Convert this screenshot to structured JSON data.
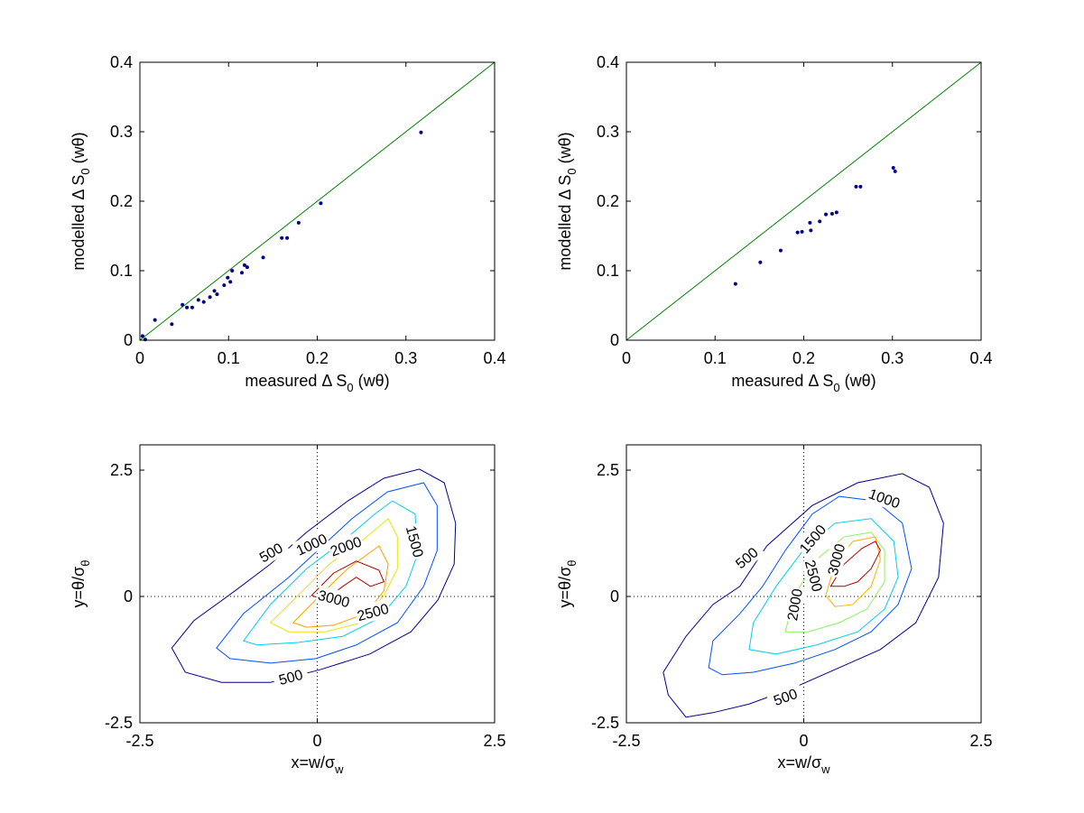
{
  "chart_data": [
    {
      "type": "scatter",
      "x": [
        0.003,
        0.006,
        0.017,
        0.036,
        0.048,
        0.053,
        0.059,
        0.066,
        0.072,
        0.079,
        0.084,
        0.087,
        0.095,
        0.099,
        0.102,
        0.104,
        0.115,
        0.118,
        0.121,
        0.139,
        0.16,
        0.166,
        0.179,
        0.204,
        0.317
      ],
      "y": [
        0.006,
        0.001,
        0.029,
        0.023,
        0.051,
        0.047,
        0.047,
        0.058,
        0.055,
        0.062,
        0.071,
        0.066,
        0.079,
        0.09,
        0.084,
        0.1,
        0.097,
        0.108,
        0.105,
        0.119,
        0.147,
        0.147,
        0.169,
        0.197,
        0.299
      ],
      "color": "#00008b",
      "reference_line": {
        "x": [
          0,
          0.4
        ],
        "y": [
          0,
          0.4
        ],
        "color": "#008000"
      },
      "xlim": [
        0,
        0.4
      ],
      "ylim": [
        0,
        0.4
      ],
      "xticks": [
        0,
        0.1,
        0.2,
        0.3,
        0.4
      ],
      "yticks": [
        0,
        0.1,
        0.2,
        0.3,
        0.4
      ],
      "xlabel": {
        "main": "measured Δ S",
        "sub": "0",
        "rest": " (wθ)"
      },
      "ylabel": {
        "main": "modelled Δ S",
        "sub": "0",
        "rest": " (wθ)"
      }
    },
    {
      "type": "scatter",
      "x": [
        0.123,
        0.151,
        0.174,
        0.193,
        0.198,
        0.207,
        0.208,
        0.218,
        0.225,
        0.232,
        0.237,
        0.259,
        0.264,
        0.301,
        0.303
      ],
      "y": [
        0.081,
        0.112,
        0.129,
        0.155,
        0.156,
        0.169,
        0.158,
        0.171,
        0.181,
        0.182,
        0.184,
        0.221,
        0.221,
        0.248,
        0.243
      ],
      "color": "#00008b",
      "reference_line": {
        "x": [
          0,
          0.4
        ],
        "y": [
          0,
          0.4
        ],
        "color": "#008000"
      },
      "xlim": [
        0,
        0.4
      ],
      "ylim": [
        0,
        0.4
      ],
      "xticks": [
        0,
        0.1,
        0.2,
        0.3,
        0.4
      ],
      "yticks": [
        0,
        0.1,
        0.2,
        0.3,
        0.4
      ],
      "xlabel": {
        "main": "measured Δ S",
        "sub": "0",
        "rest": " (wθ)"
      },
      "ylabel": {
        "main": "modelled Δ S",
        "sub": "0",
        "rest": " (wθ)"
      }
    },
    {
      "type": "contour",
      "contours": [
        {
          "level": 500,
          "color": "#00008f",
          "x": [
            -2.05,
            -1.74,
            -1.16,
            -0.66,
            -0.15,
            0.43,
            0.94,
            1.44,
            1.79,
            1.95,
            1.93,
            1.7,
            1.32,
            0.74,
            0.04,
            -0.66,
            -1.35,
            -1.86
          ],
          "y": [
            -1.02,
            -0.48,
            0.11,
            0.64,
            1.27,
            1.89,
            2.34,
            2.52,
            2.25,
            1.45,
            0.64,
            -0.07,
            -0.7,
            -1.14,
            -1.45,
            -1.7,
            -1.7,
            -1.5
          ]
        },
        {
          "level": 1000,
          "color": "#0050ff",
          "x": [
            -1.42,
            -1.04,
            -0.4,
            0.49,
            0.99,
            1.5,
            1.69,
            1.69,
            1.5,
            1.13,
            0.55,
            -0.02,
            -0.66,
            -1.23
          ],
          "y": [
            -1.02,
            -0.34,
            0.38,
            1.54,
            2.07,
            2.25,
            1.8,
            0.91,
            0.2,
            -0.52,
            -0.96,
            -1.23,
            -1.32,
            -1.23
          ]
        },
        {
          "level": 1500,
          "color": "#00cfef",
          "x": [
            -1.04,
            -0.66,
            -0.15,
            0.36,
            0.81,
            1.06,
            1.38,
            1.41,
            1.25,
            0.87,
            0.36,
            -0.27,
            -0.85
          ],
          "y": [
            -0.88,
            -0.16,
            0.55,
            1.09,
            1.63,
            1.89,
            1.63,
            0.82,
            0.2,
            -0.43,
            -0.79,
            -0.91,
            -0.96
          ]
        },
        {
          "level": 2000,
          "color": "#e8e800",
          "x": [
            -0.66,
            -0.27,
            0.17,
            0.62,
            1.0,
            1.13,
            1.13,
            0.94,
            0.62,
            0.11,
            -0.4
          ],
          "y": [
            -0.52,
            0.02,
            0.64,
            1.09,
            1.54,
            1.18,
            0.55,
            0.02,
            -0.52,
            -0.7,
            -0.7
          ]
        },
        {
          "level": 2500,
          "color": "#ff9f00",
          "x": [
            -0.34,
            0.04,
            0.43,
            0.87,
            1.0,
            0.94,
            0.68,
            0.23,
            -0.15
          ],
          "y": [
            -0.52,
            0.02,
            0.55,
            1.0,
            0.64,
            0.11,
            -0.34,
            -0.57,
            -0.61
          ]
        },
        {
          "level": 3000,
          "color": "#b00000",
          "x": [
            -0.08,
            0.23,
            0.55,
            0.87,
            0.94,
            0.75,
            0.55,
            0.36,
            0.11
          ],
          "y": [
            0.02,
            0.46,
            0.7,
            0.52,
            0.29,
            0.2,
            0.38,
            0.2,
            -0.07
          ]
        }
      ],
      "zero_lines": true,
      "xlim": [
        -2.5,
        2.5
      ],
      "ylim": [
        -2.5,
        3
      ],
      "xticks": [
        -2.5,
        0,
        2.5
      ],
      "yticks": [
        -2.5,
        0,
        2.5
      ],
      "xlabel": {
        "main": "x=w/σ",
        "sub": "w"
      },
      "ylabel": {
        "main": "y=θ/σ",
        "sub": "θ"
      }
    },
    {
      "type": "contour",
      "contours": [
        {
          "level": 500,
          "color": "#00008f",
          "x": [
            -1.91,
            -1.98,
            -1.66,
            -1.28,
            -0.9,
            -0.52,
            0.12,
            0.76,
            1.39,
            1.77,
            1.97,
            1.9,
            1.58,
            1.08,
            0.5,
            -0.13,
            -0.77,
            -1.28,
            -1.66
          ],
          "y": [
            -1.95,
            -1.5,
            -0.79,
            -0.16,
            0.2,
            1.0,
            1.8,
            2.25,
            2.43,
            2.16,
            1.45,
            0.38,
            -0.52,
            -1.05,
            -1.41,
            -1.8,
            -2.13,
            -2.3,
            -2.39
          ]
        },
        {
          "level": 1000,
          "color": "#0050ff",
          "x": [
            -1.34,
            -1.28,
            -0.9,
            -0.58,
            -0.26,
            0.12,
            0.5,
            1.01,
            1.39,
            1.52,
            1.33,
            0.95,
            0.44,
            -0.13,
            -0.71,
            -1.15
          ],
          "y": [
            -1.41,
            -0.88,
            -0.34,
            0.2,
            0.91,
            1.63,
            1.98,
            1.89,
            1.45,
            0.55,
            -0.16,
            -0.7,
            -1.05,
            -1.32,
            -1.5,
            -1.55
          ]
        },
        {
          "level": 1500,
          "color": "#00cfef",
          "x": [
            -0.77,
            -0.71,
            -0.39,
            -0.01,
            0.44,
            0.95,
            1.27,
            1.33,
            1.14,
            0.76,
            0.18,
            -0.39
          ],
          "y": [
            -1.05,
            -0.52,
            0.2,
            0.91,
            1.45,
            1.54,
            1.09,
            0.38,
            -0.25,
            -0.7,
            -0.96,
            -1.14
          ]
        },
        {
          "level": 2000,
          "color": "#90ef60",
          "x": [
            -0.26,
            -0.13,
            0.18,
            0.57,
            0.95,
            1.14,
            1.14,
            0.89,
            0.5,
            0.06
          ],
          "y": [
            -0.7,
            0.02,
            0.73,
            1.18,
            1.27,
            0.91,
            0.29,
            -0.25,
            -0.52,
            -0.7
          ]
        },
        {
          "level": 2500,
          "color": "#ffaf00",
          "x": [
            0.31,
            0.44,
            0.69,
            1.01,
            1.08,
            0.95,
            0.69,
            0.44
          ],
          "y": [
            0.02,
            0.64,
            1.09,
            1.18,
            0.73,
            0.2,
            -0.16,
            -0.2
          ]
        },
        {
          "level": 3000,
          "color": "#b00000",
          "x": [
            0.38,
            0.57,
            0.82,
            1.01,
            1.08,
            0.95,
            0.76,
            0.57
          ],
          "y": [
            0.2,
            0.64,
            0.95,
            1.09,
            0.91,
            0.55,
            0.29,
            0.2
          ]
        }
      ],
      "zero_lines": true,
      "xlim": [
        -2.5,
        2.5
      ],
      "ylim": [
        -2.5,
        3
      ],
      "xticks": [
        -2.5,
        0,
        2.5
      ],
      "yticks": [
        -2.5,
        0,
        2.5
      ],
      "xlabel": {
        "main": "x=w/σ",
        "sub": "w"
      },
      "ylabel": {
        "main": "y=θ/σ",
        "sub": "θ"
      }
    }
  ]
}
